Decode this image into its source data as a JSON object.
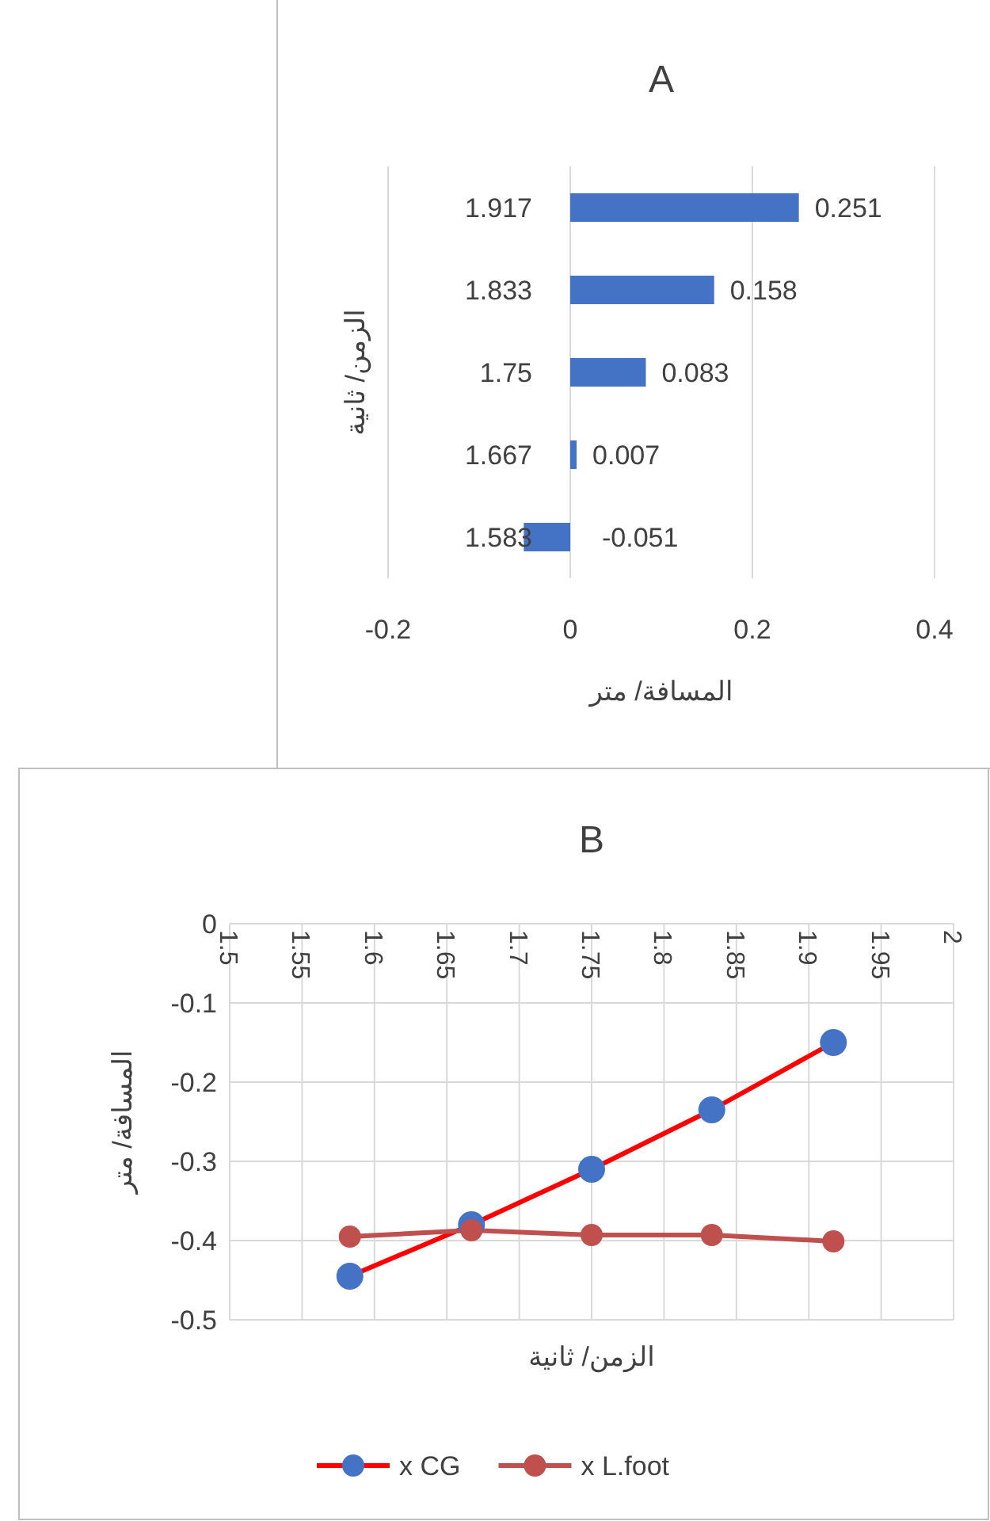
{
  "chart_data": [
    {
      "type": "bar",
      "orientation": "horizontal",
      "title": "A",
      "xlabel": "المسافة/ متر",
      "ylabel": "الزمن/ ثانية",
      "categories": [
        "1.917",
        "1.833",
        "1.75",
        "1.667",
        "1.583"
      ],
      "values": [
        0.251,
        0.158,
        0.083,
        0.007,
        -0.051
      ],
      "color": "#4472c4",
      "xlim": [
        -0.2,
        0.4
      ],
      "xticks": [
        -0.2,
        0,
        0.2,
        0.4
      ],
      "grid": "x",
      "data_labels": true
    },
    {
      "type": "line",
      "title": "B",
      "xlabel": "الزمن/ ثانية",
      "ylabel": "المسافة/ متر",
      "xlim": [
        1.5,
        2
      ],
      "xticks": [
        1.5,
        1.55,
        1.6,
        1.65,
        1.7,
        1.75,
        1.8,
        1.85,
        1.9,
        1.95,
        2
      ],
      "ylim": [
        -0.5,
        0
      ],
      "yticks": [
        0,
        -0.1,
        -0.2,
        -0.3,
        -0.4,
        -0.5
      ],
      "grid": true,
      "legend": "bottom",
      "marker": "circle",
      "line_style": "solid",
      "series": [
        {
          "name": "x CG",
          "color": "#ff0000",
          "colors": [
            "#4472c4",
            "#4472c4",
            "#4472c4",
            "#4472c4",
            "#4472c4"
          ],
          "x": [
            1.583,
            1.667,
            1.75,
            1.833,
            1.917
          ],
          "values": [
            -0.445,
            -0.38,
            -0.31,
            -0.235,
            -0.15
          ]
        },
        {
          "name": "x L.foot",
          "color": "#c0504d",
          "colors": [
            "#c0504d",
            "#c0504d",
            "#c0504d",
            "#c0504d",
            "#c0504d"
          ],
          "x": [
            1.583,
            1.667,
            1.75,
            1.833,
            1.917
          ],
          "values": [
            -0.395,
            -0.387,
            -0.393,
            -0.393,
            -0.401
          ]
        }
      ]
    }
  ]
}
